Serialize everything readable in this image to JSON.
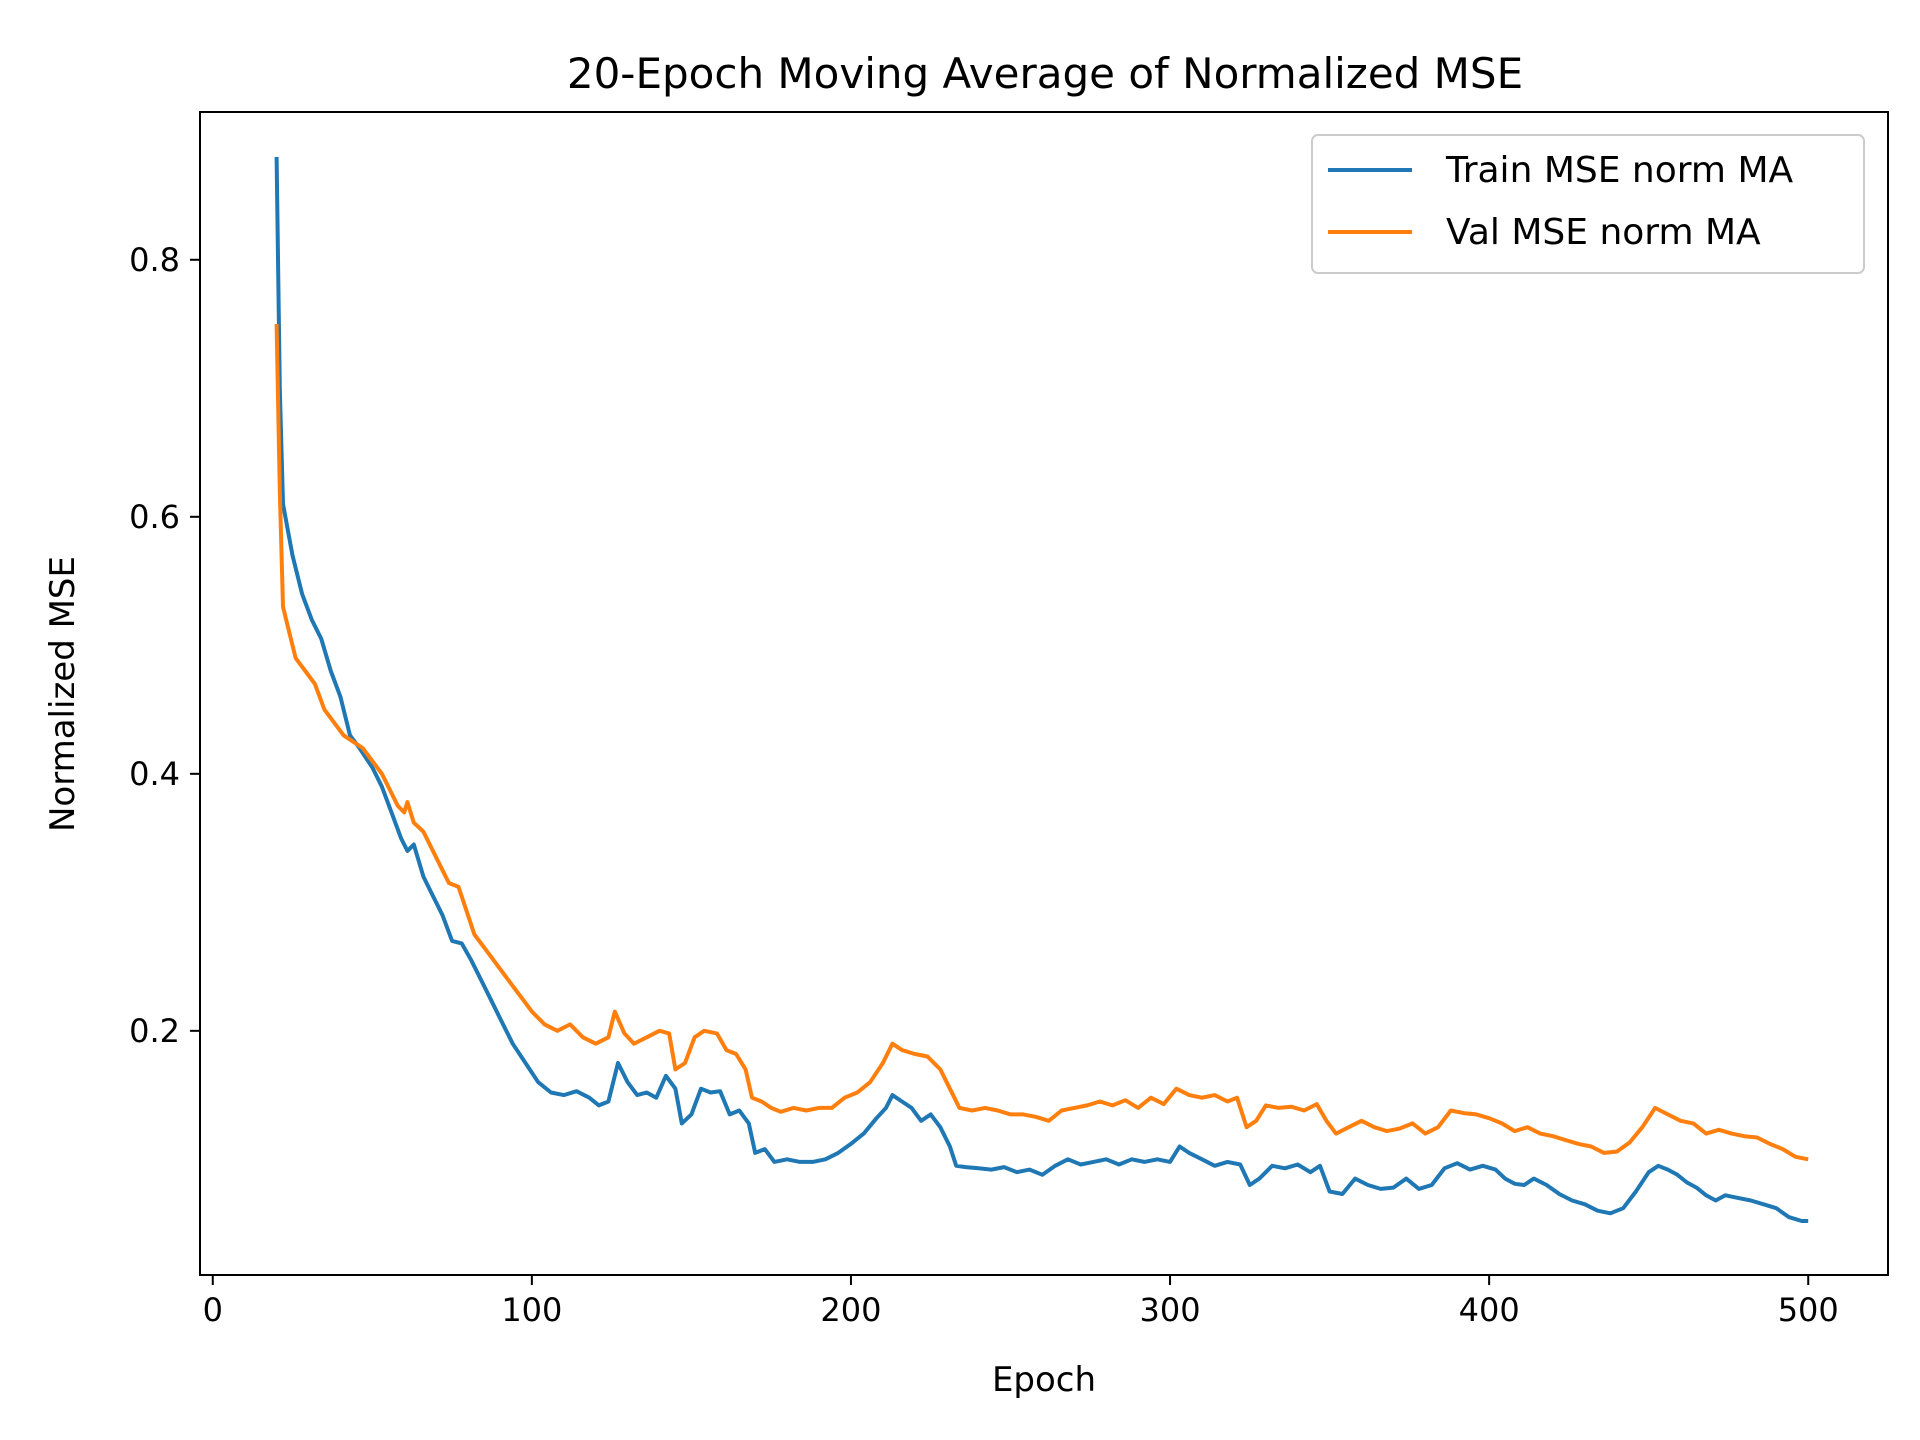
{
  "chart_data": {
    "type": "line",
    "title": "20-Epoch Moving Average of Normalized MSE",
    "xlabel": "Epoch",
    "ylabel": "Normalized MSE",
    "xlim": [
      -4,
      525
    ],
    "ylim": [
      0.01,
      0.915
    ],
    "xticks": [
      0,
      100,
      200,
      300,
      400,
      500
    ],
    "yticks": [
      0.2,
      0.4,
      0.6,
      0.8
    ],
    "grid": false,
    "legend_position": "top-right",
    "series": [
      {
        "name": "Train MSE norm MA",
        "color": "#1f77b4",
        "points": [
          [
            20,
            0.88
          ],
          [
            21,
            0.7
          ],
          [
            22,
            0.61
          ],
          [
            25,
            0.57
          ],
          [
            28,
            0.54
          ],
          [
            31,
            0.52
          ],
          [
            34,
            0.505
          ],
          [
            37,
            0.48
          ],
          [
            40,
            0.46
          ],
          [
            43,
            0.43
          ],
          [
            46,
            0.42
          ],
          [
            50,
            0.405
          ],
          [
            53,
            0.39
          ],
          [
            56,
            0.37
          ],
          [
            59,
            0.35
          ],
          [
            61,
            0.34
          ],
          [
            63,
            0.345
          ],
          [
            66,
            0.32
          ],
          [
            69,
            0.305
          ],
          [
            72,
            0.29
          ],
          [
            75,
            0.27
          ],
          [
            78,
            0.268
          ],
          [
            81,
            0.255
          ],
          [
            84,
            0.24
          ],
          [
            87,
            0.225
          ],
          [
            90,
            0.21
          ],
          [
            94,
            0.19
          ],
          [
            98,
            0.175
          ],
          [
            102,
            0.16
          ],
          [
            106,
            0.152
          ],
          [
            110,
            0.15
          ],
          [
            114,
            0.153
          ],
          [
            118,
            0.148
          ],
          [
            121,
            0.142
          ],
          [
            124,
            0.145
          ],
          [
            127,
            0.175
          ],
          [
            130,
            0.16
          ],
          [
            133,
            0.15
          ],
          [
            136,
            0.152
          ],
          [
            139,
            0.148
          ],
          [
            142,
            0.165
          ],
          [
            145,
            0.155
          ],
          [
            147,
            0.128
          ],
          [
            150,
            0.135
          ],
          [
            153,
            0.155
          ],
          [
            156,
            0.152
          ],
          [
            159,
            0.153
          ],
          [
            162,
            0.135
          ],
          [
            165,
            0.138
          ],
          [
            168,
            0.128
          ],
          [
            170,
            0.105
          ],
          [
            173,
            0.108
          ],
          [
            176,
            0.098
          ],
          [
            180,
            0.1
          ],
          [
            184,
            0.098
          ],
          [
            188,
            0.098
          ],
          [
            192,
            0.1
          ],
          [
            196,
            0.105
          ],
          [
            200,
            0.112
          ],
          [
            204,
            0.12
          ],
          [
            208,
            0.132
          ],
          [
            211,
            0.14
          ],
          [
            213,
            0.15
          ],
          [
            216,
            0.145
          ],
          [
            219,
            0.14
          ],
          [
            222,
            0.13
          ],
          [
            225,
            0.135
          ],
          [
            228,
            0.125
          ],
          [
            231,
            0.11
          ],
          [
            233,
            0.095
          ],
          [
            236,
            0.094
          ],
          [
            240,
            0.093
          ],
          [
            244,
            0.092
          ],
          [
            248,
            0.094
          ],
          [
            252,
            0.09
          ],
          [
            256,
            0.092
          ],
          [
            260,
            0.088
          ],
          [
            264,
            0.095
          ],
          [
            268,
            0.1
          ],
          [
            272,
            0.096
          ],
          [
            276,
            0.098
          ],
          [
            280,
            0.1
          ],
          [
            284,
            0.096
          ],
          [
            288,
            0.1
          ],
          [
            292,
            0.098
          ],
          [
            296,
            0.1
          ],
          [
            300,
            0.098
          ],
          [
            303,
            0.11
          ],
          [
            306,
            0.105
          ],
          [
            310,
            0.1
          ],
          [
            314,
            0.095
          ],
          [
            318,
            0.098
          ],
          [
            322,
            0.096
          ],
          [
            325,
            0.08
          ],
          [
            328,
            0.085
          ],
          [
            332,
            0.095
          ],
          [
            336,
            0.093
          ],
          [
            340,
            0.096
          ],
          [
            344,
            0.09
          ],
          [
            347,
            0.095
          ],
          [
            350,
            0.075
          ],
          [
            354,
            0.073
          ],
          [
            358,
            0.085
          ],
          [
            362,
            0.08
          ],
          [
            366,
            0.077
          ],
          [
            370,
            0.078
          ],
          [
            374,
            0.085
          ],
          [
            378,
            0.077
          ],
          [
            382,
            0.08
          ],
          [
            386,
            0.093
          ],
          [
            390,
            0.097
          ],
          [
            394,
            0.092
          ],
          [
            398,
            0.095
          ],
          [
            402,
            0.092
          ],
          [
            405,
            0.085
          ],
          [
            408,
            0.081
          ],
          [
            411,
            0.08
          ],
          [
            414,
            0.085
          ],
          [
            418,
            0.08
          ],
          [
            422,
            0.073
          ],
          [
            426,
            0.068
          ],
          [
            430,
            0.065
          ],
          [
            434,
            0.06
          ],
          [
            438,
            0.058
          ],
          [
            442,
            0.062
          ],
          [
            446,
            0.075
          ],
          [
            450,
            0.09
          ],
          [
            453,
            0.095
          ],
          [
            456,
            0.092
          ],
          [
            459,
            0.088
          ],
          [
            462,
            0.082
          ],
          [
            465,
            0.078
          ],
          [
            468,
            0.072
          ],
          [
            471,
            0.068
          ],
          [
            474,
            0.072
          ],
          [
            478,
            0.07
          ],
          [
            482,
            0.068
          ],
          [
            486,
            0.065
          ],
          [
            490,
            0.062
          ],
          [
            494,
            0.055
          ],
          [
            498,
            0.052
          ],
          [
            500,
            0.052
          ]
        ]
      },
      {
        "name": "Val MSE norm MA",
        "color": "#ff7f0e",
        "points": [
          [
            20,
            0.75
          ],
          [
            21,
            0.62
          ],
          [
            22,
            0.53
          ],
          [
            24,
            0.51
          ],
          [
            26,
            0.49
          ],
          [
            29,
            0.48
          ],
          [
            32,
            0.47
          ],
          [
            35,
            0.45
          ],
          [
            38,
            0.44
          ],
          [
            41,
            0.43
          ],
          [
            44,
            0.425
          ],
          [
            47,
            0.42
          ],
          [
            50,
            0.41
          ],
          [
            53,
            0.4
          ],
          [
            56,
            0.385
          ],
          [
            58,
            0.375
          ],
          [
            60,
            0.37
          ],
          [
            61,
            0.378
          ],
          [
            63,
            0.362
          ],
          [
            66,
            0.355
          ],
          [
            69,
            0.34
          ],
          [
            72,
            0.325
          ],
          [
            74,
            0.315
          ],
          [
            77,
            0.312
          ],
          [
            80,
            0.29
          ],
          [
            82,
            0.275
          ],
          [
            85,
            0.265
          ],
          [
            88,
            0.255
          ],
          [
            91,
            0.245
          ],
          [
            94,
            0.235
          ],
          [
            97,
            0.225
          ],
          [
            100,
            0.215
          ],
          [
            104,
            0.205
          ],
          [
            108,
            0.2
          ],
          [
            112,
            0.205
          ],
          [
            116,
            0.195
          ],
          [
            120,
            0.19
          ],
          [
            124,
            0.195
          ],
          [
            126,
            0.215
          ],
          [
            129,
            0.198
          ],
          [
            132,
            0.19
          ],
          [
            136,
            0.195
          ],
          [
            140,
            0.2
          ],
          [
            143,
            0.198
          ],
          [
            145,
            0.17
          ],
          [
            148,
            0.175
          ],
          [
            151,
            0.195
          ],
          [
            154,
            0.2
          ],
          [
            158,
            0.198
          ],
          [
            161,
            0.185
          ],
          [
            164,
            0.182
          ],
          [
            167,
            0.17
          ],
          [
            169,
            0.148
          ],
          [
            172,
            0.145
          ],
          [
            175,
            0.14
          ],
          [
            178,
            0.137
          ],
          [
            182,
            0.14
          ],
          [
            186,
            0.138
          ],
          [
            190,
            0.14
          ],
          [
            194,
            0.14
          ],
          [
            198,
            0.148
          ],
          [
            202,
            0.152
          ],
          [
            206,
            0.16
          ],
          [
            210,
            0.175
          ],
          [
            213,
            0.19
          ],
          [
            216,
            0.185
          ],
          [
            220,
            0.182
          ],
          [
            224,
            0.18
          ],
          [
            228,
            0.17
          ],
          [
            231,
            0.155
          ],
          [
            234,
            0.14
          ],
          [
            238,
            0.138
          ],
          [
            242,
            0.14
          ],
          [
            246,
            0.138
          ],
          [
            250,
            0.135
          ],
          [
            254,
            0.135
          ],
          [
            258,
            0.133
          ],
          [
            262,
            0.13
          ],
          [
            266,
            0.138
          ],
          [
            270,
            0.14
          ],
          [
            274,
            0.142
          ],
          [
            278,
            0.145
          ],
          [
            282,
            0.142
          ],
          [
            286,
            0.146
          ],
          [
            290,
            0.14
          ],
          [
            294,
            0.148
          ],
          [
            298,
            0.143
          ],
          [
            302,
            0.155
          ],
          [
            306,
            0.15
          ],
          [
            310,
            0.148
          ],
          [
            314,
            0.15
          ],
          [
            318,
            0.145
          ],
          [
            321,
            0.148
          ],
          [
            324,
            0.125
          ],
          [
            327,
            0.13
          ],
          [
            330,
            0.142
          ],
          [
            334,
            0.14
          ],
          [
            338,
            0.141
          ],
          [
            342,
            0.138
          ],
          [
            346,
            0.143
          ],
          [
            349,
            0.13
          ],
          [
            352,
            0.12
          ],
          [
            356,
            0.125
          ],
          [
            360,
            0.13
          ],
          [
            364,
            0.125
          ],
          [
            368,
            0.122
          ],
          [
            372,
            0.124
          ],
          [
            376,
            0.128
          ],
          [
            380,
            0.12
          ],
          [
            384,
            0.125
          ],
          [
            388,
            0.138
          ],
          [
            392,
            0.136
          ],
          [
            396,
            0.135
          ],
          [
            400,
            0.132
          ],
          [
            404,
            0.128
          ],
          [
            408,
            0.122
          ],
          [
            412,
            0.125
          ],
          [
            416,
            0.12
          ],
          [
            420,
            0.118
          ],
          [
            424,
            0.115
          ],
          [
            428,
            0.112
          ],
          [
            432,
            0.11
          ],
          [
            436,
            0.105
          ],
          [
            440,
            0.106
          ],
          [
            444,
            0.113
          ],
          [
            448,
            0.125
          ],
          [
            452,
            0.14
          ],
          [
            456,
            0.135
          ],
          [
            460,
            0.13
          ],
          [
            464,
            0.128
          ],
          [
            468,
            0.12
          ],
          [
            472,
            0.123
          ],
          [
            476,
            0.12
          ],
          [
            480,
            0.118
          ],
          [
            484,
            0.117
          ],
          [
            488,
            0.112
          ],
          [
            492,
            0.108
          ],
          [
            496,
            0.102
          ],
          [
            500,
            0.1
          ]
        ]
      }
    ]
  }
}
